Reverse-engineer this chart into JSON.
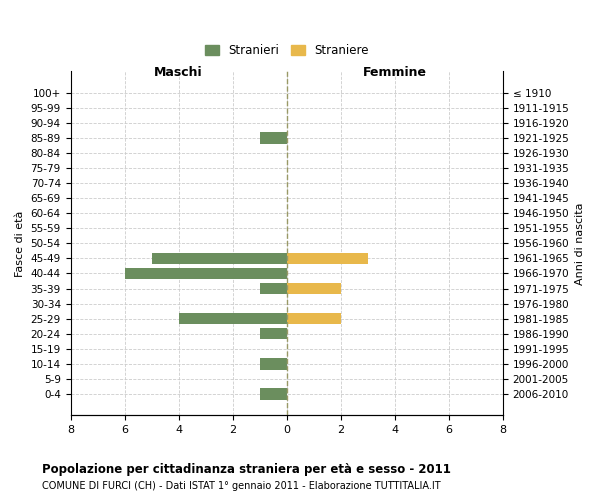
{
  "age_groups": [
    "100+",
    "95-99",
    "90-94",
    "85-89",
    "80-84",
    "75-79",
    "70-74",
    "65-69",
    "60-64",
    "55-59",
    "50-54",
    "45-49",
    "40-44",
    "35-39",
    "30-34",
    "25-29",
    "20-24",
    "15-19",
    "10-14",
    "5-9",
    "0-4"
  ],
  "birth_years": [
    "≤ 1910",
    "1911-1915",
    "1916-1920",
    "1921-1925",
    "1926-1930",
    "1931-1935",
    "1936-1940",
    "1941-1945",
    "1946-1950",
    "1951-1955",
    "1956-1960",
    "1961-1965",
    "1966-1970",
    "1971-1975",
    "1976-1980",
    "1981-1985",
    "1986-1990",
    "1991-1995",
    "1996-2000",
    "2001-2005",
    "2006-2010"
  ],
  "males": [
    0,
    0,
    0,
    1,
    0,
    0,
    0,
    0,
    0,
    0,
    0,
    5,
    6,
    1,
    0,
    4,
    1,
    0,
    1,
    0,
    1
  ],
  "females": [
    0,
    0,
    0,
    0,
    0,
    0,
    0,
    0,
    0,
    0,
    0,
    3,
    0,
    2,
    0,
    2,
    0,
    0,
    0,
    0,
    0
  ],
  "male_color": "#6B8E5E",
  "female_color": "#E8B84B",
  "male_label": "Stranieri",
  "female_label": "Straniere",
  "title": "Popolazione per cittadinanza straniera per età e sesso - 2011",
  "subtitle": "COMUNE DI FURCI (CH) - Dati ISTAT 1° gennaio 2011 - Elaborazione TUTTITALIA.IT",
  "ylabel_left": "Fasce di età",
  "ylabel_right": "Anni di nascita",
  "xlabel_left": "Maschi",
  "xlabel_right": "Femmine",
  "xlim": 8,
  "background_color": "#ffffff",
  "grid_color": "#cccccc",
  "bar_height": 0.75
}
